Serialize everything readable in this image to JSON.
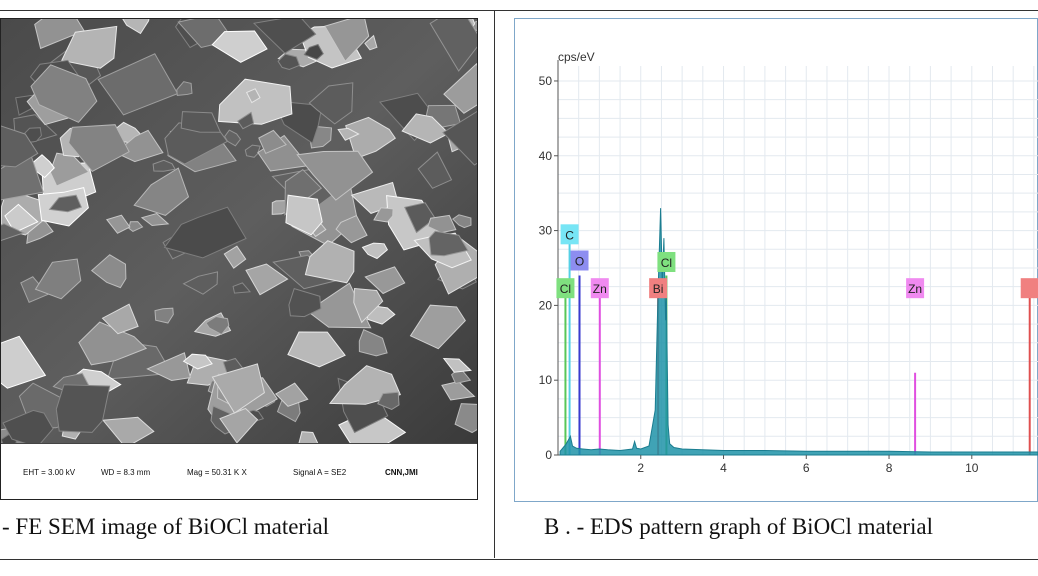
{
  "left_panel": {
    "caption": "- FE SEM image of BiOCl material",
    "info_bar": {
      "eht": "EHT = 3.00 kV",
      "wd": "WD = 8.3 mm",
      "mag": "Mag = 50.31 K X",
      "signal": "Signal A = SE2",
      "lab": "CNN,JMI"
    }
  },
  "right_panel": {
    "caption": "B . - EDS pattern graph of BiOCl material"
  },
  "chart_data": {
    "type": "line",
    "ylabel": "cps/eV",
    "xlabel": "",
    "ylim": [
      0,
      52
    ],
    "xlim": [
      0,
      11.6
    ],
    "yticks": [
      0,
      10,
      20,
      30,
      40,
      50
    ],
    "xticks": [
      2,
      4,
      6,
      8,
      10
    ],
    "grid": true,
    "series": [
      {
        "x": [
          0.05,
          0.2,
          0.3,
          0.35,
          0.45,
          0.6,
          0.8,
          1.0,
          1.2,
          1.5,
          1.8,
          1.85,
          1.9,
          2.0,
          2.2,
          2.35,
          2.42,
          2.48,
          2.52,
          2.56,
          2.6,
          2.62,
          2.66,
          2.7,
          2.8,
          3.0,
          3.5,
          4.0,
          5.0,
          6.0,
          7.0,
          8.0,
          9.0,
          10.0,
          11.0,
          11.6
        ],
        "y": [
          0.5,
          1.5,
          2.5,
          1.2,
          0.9,
          0.8,
          0.7,
          0.8,
          0.7,
          0.6,
          0.8,
          1.8,
          0.9,
          0.8,
          1.2,
          6,
          22,
          33,
          23,
          29,
          18,
          21,
          4,
          1.5,
          1,
          0.8,
          0.7,
          0.6,
          0.6,
          0.5,
          0.5,
          0.5,
          0.4,
          0.4,
          0.4,
          0.4
        ],
        "color": "#1f93a8"
      }
    ],
    "peaks": [
      {
        "label": "C",
        "x": 0.28,
        "height": 30,
        "line_color": "#55d0e6",
        "label_bg": "#77e5f5",
        "label_y": 29.5
      },
      {
        "label": "O",
        "x": 0.52,
        "height": 24,
        "line_color": "#3a3acf",
        "label_bg": "#8d8df0",
        "label_y": 26
      },
      {
        "label": "Cl",
        "x": 0.18,
        "height": 22,
        "line_color": "#58c758",
        "label_bg": "#7fe07f",
        "label_y": 22.3
      },
      {
        "label": "Zn",
        "x": 1.01,
        "height": 21,
        "line_color": "#e04fe0",
        "label_bg": "#f08af0",
        "label_y": 22.3
      },
      {
        "label": "Bi",
        "x": 2.42,
        "height": 21,
        "line_color": "#e05050",
        "label_bg": "#f08080",
        "label_y": 22.3
      },
      {
        "label": "Cl",
        "x": 2.62,
        "height": 24,
        "line_color": "#58c758",
        "label_bg": "#7fe07f",
        "label_y": 25.8
      },
      {
        "label": "Zn",
        "x": 8.63,
        "height": 11,
        "line_color": "#e04fe0",
        "label_bg": "#f08af0",
        "label_y": 22.3
      },
      {
        "label": "",
        "x": 11.4,
        "height": 22,
        "line_color": "#e05050",
        "label_bg": "#f08080",
        "label_y": 22.3
      }
    ]
  }
}
